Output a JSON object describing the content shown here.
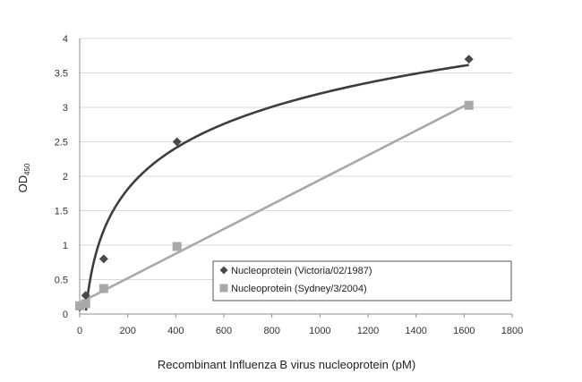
{
  "chart_data": {
    "type": "scatter",
    "title": "",
    "xlabel": "Recombinant Influenza B virus nucleoprotein (pM)",
    "ylabel": "OD",
    "ylabel_sub": "450",
    "xlim": [
      0,
      1800
    ],
    "ylim": [
      0,
      4
    ],
    "xticks": [
      0,
      200,
      400,
      600,
      800,
      1000,
      1200,
      1400,
      1600,
      1800
    ],
    "yticks": [
      0,
      0.5,
      1,
      1.5,
      2,
      2.5,
      3,
      3.5,
      4
    ],
    "grid": "horizontal",
    "legend_position": "bottom-right",
    "series": [
      {
        "name": "Nucleoprotein (Victoria/02/1987)",
        "marker": "diamond",
        "color": "#4a4a4a",
        "trendline": "logarithmic",
        "trend_color": "#3d3d3d",
        "x": [
          0,
          25,
          100,
          405,
          1620
        ],
        "y": [
          0.1,
          0.27,
          0.8,
          2.5,
          3.7
        ]
      },
      {
        "name": "Nucleoprotein (Sydney/3/2004)",
        "marker": "square",
        "color": "#a8a8a8",
        "trendline": "linear",
        "trend_color": "#a8a8a8",
        "x": [
          0,
          25,
          100,
          405,
          1620
        ],
        "y": [
          0.12,
          0.15,
          0.37,
          0.98,
          3.03
        ]
      }
    ]
  }
}
